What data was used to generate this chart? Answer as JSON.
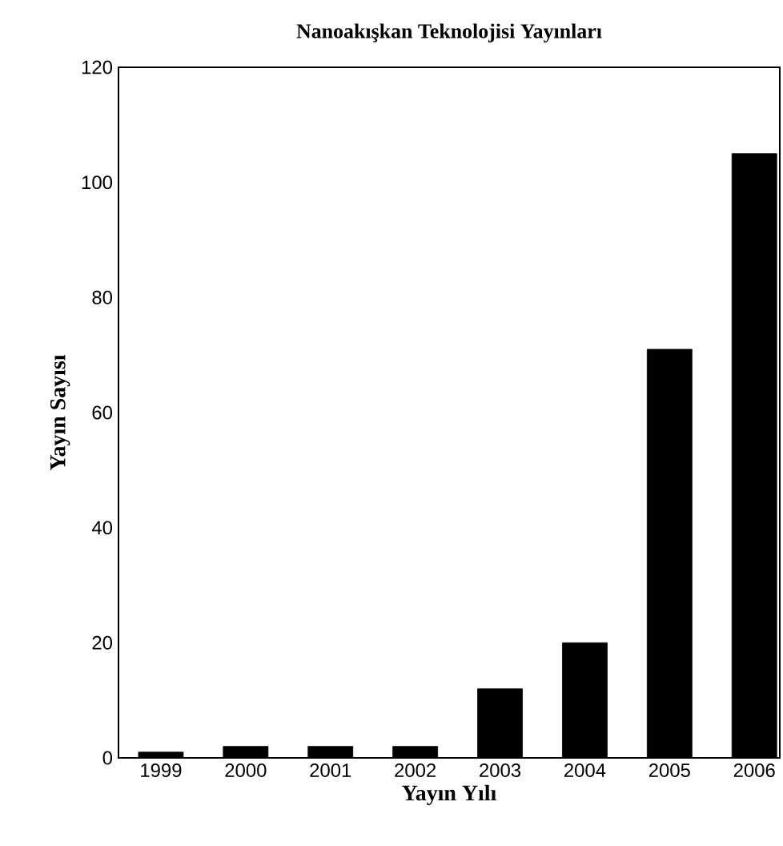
{
  "chart_data": {
    "type": "bar",
    "title": "Nanoakışkan Teknolojisi Yayınları",
    "xlabel": "Yayın Yılı",
    "ylabel": "Yayın Sayısı",
    "categories": [
      "1999",
      "2000",
      "2001",
      "2002",
      "2003",
      "2004",
      "2005",
      "2006"
    ],
    "values": [
      1,
      2,
      2,
      2,
      12,
      20,
      71,
      105
    ],
    "color": "#000000",
    "ylim": [
      0,
      120
    ],
    "yticks": [
      0,
      20,
      40,
      60,
      80,
      100,
      120
    ],
    "grid": false
  }
}
